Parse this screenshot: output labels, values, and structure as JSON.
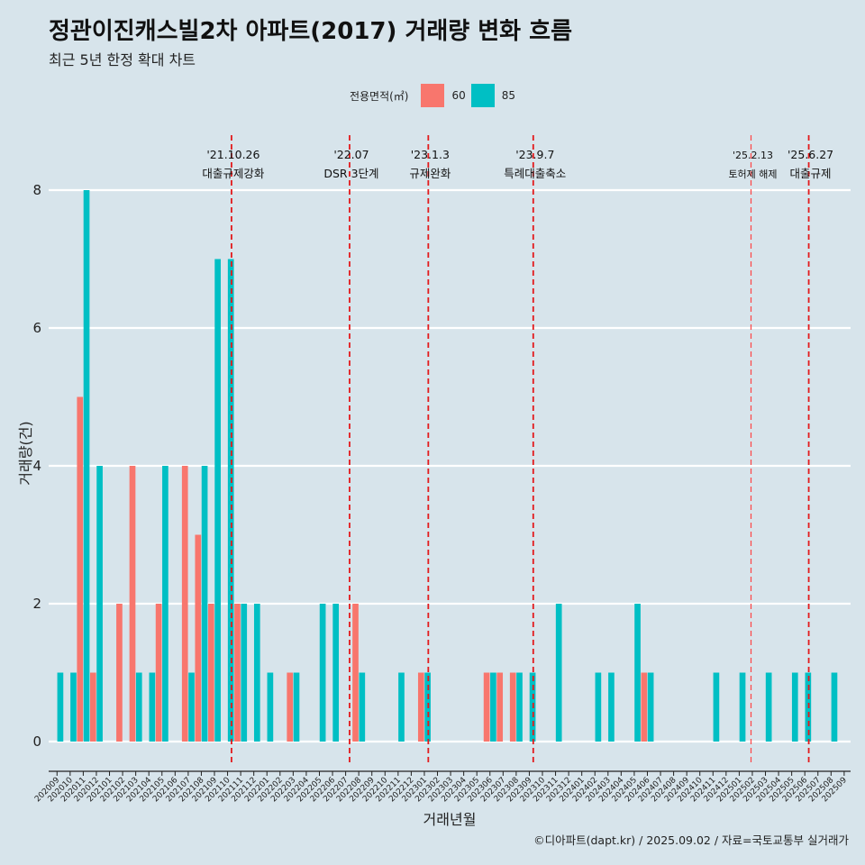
{
  "title": "정관이진캐스빌2차 아파트(2017) 거래량 변화 흐름",
  "subtitle": "최근 5년 한정 확대 차트",
  "caption": "©디아파트(dapt.kr) / 2025.09.02 / 자료=국토교통부 실거래가",
  "legend": {
    "title": "전용면적(㎡)",
    "items": [
      {
        "label": "60",
        "color": "#f8766d"
      },
      {
        "label": "85",
        "color": "#00bfc4"
      }
    ]
  },
  "chart_data": {
    "type": "bar",
    "title": "정관이진캐스빌2차 아파트(2017) 거래량 변화 흐름",
    "xlabel": "거래년월",
    "ylabel": "거래량(건)",
    "ylim": [
      0,
      8
    ],
    "yticks": [
      0,
      2,
      4,
      6,
      8
    ],
    "grid": true,
    "legend_position": "top",
    "categories": [
      "202009",
      "202010",
      "202011",
      "202012",
      "202101",
      "202102",
      "202103",
      "202104",
      "202105",
      "202106",
      "202107",
      "202108",
      "202109",
      "202110",
      "202111",
      "202112",
      "202201",
      "202202",
      "202203",
      "202204",
      "202205",
      "202206",
      "202207",
      "202208",
      "202209",
      "202210",
      "202211",
      "202212",
      "202301",
      "202302",
      "202303",
      "202304",
      "202305",
      "202306",
      "202307",
      "202308",
      "202309",
      "202310",
      "202311",
      "202312",
      "202401",
      "202402",
      "202403",
      "202404",
      "202405",
      "202406",
      "202407",
      "202408",
      "202409",
      "202410",
      "202411",
      "202412",
      "202501",
      "202502",
      "202503",
      "202504",
      "202505",
      "202506",
      "202507",
      "202508",
      "202509"
    ],
    "series": [
      {
        "name": "60",
        "color": "#f8766d",
        "values": [
          0,
          0,
          5,
          1,
          0,
          2,
          4,
          0,
          2,
          0,
          4,
          3,
          2,
          0,
          2,
          0,
          0,
          0,
          1,
          0,
          0,
          0,
          0,
          2,
          0,
          0,
          0,
          0,
          1,
          0,
          0,
          0,
          0,
          1,
          1,
          1,
          0,
          0,
          0,
          0,
          0,
          0,
          0,
          0,
          0,
          1,
          0,
          0,
          0,
          0,
          0,
          0,
          0,
          0,
          0,
          0,
          0,
          0,
          0,
          0,
          0
        ]
      },
      {
        "name": "85",
        "color": "#00bfc4",
        "values": [
          1,
          1,
          8,
          4,
          0,
          0,
          1,
          1,
          4,
          0,
          1,
          4,
          7,
          7,
          2,
          2,
          1,
          0,
          1,
          0,
          2,
          2,
          0,
          1,
          0,
          0,
          1,
          0,
          1,
          0,
          0,
          0,
          0,
          1,
          0,
          1,
          1,
          0,
          2,
          0,
          0,
          1,
          1,
          0,
          2,
          1,
          0,
          0,
          0,
          0,
          1,
          0,
          1,
          0,
          1,
          0,
          1,
          1,
          0,
          1,
          0
        ]
      }
    ],
    "events": [
      {
        "date": "'21.10.26",
        "label": "대출규제강화",
        "color": "#e31a1c"
      },
      {
        "date": "'22.07",
        "label": "DSR 3단계",
        "color": "#e31a1c"
      },
      {
        "date": "'23.1.3",
        "label": "규제완화",
        "color": "#e31a1c"
      },
      {
        "date": "'23.9.7",
        "label": "특례대출축소",
        "color": "#e31a1c"
      },
      {
        "date": "'25.2.13",
        "label": "토허제 해제",
        "color": "#ff4444"
      },
      {
        "date": "'25.6.27",
        "label": "대출규제",
        "color": "#e31a1c"
      }
    ]
  }
}
